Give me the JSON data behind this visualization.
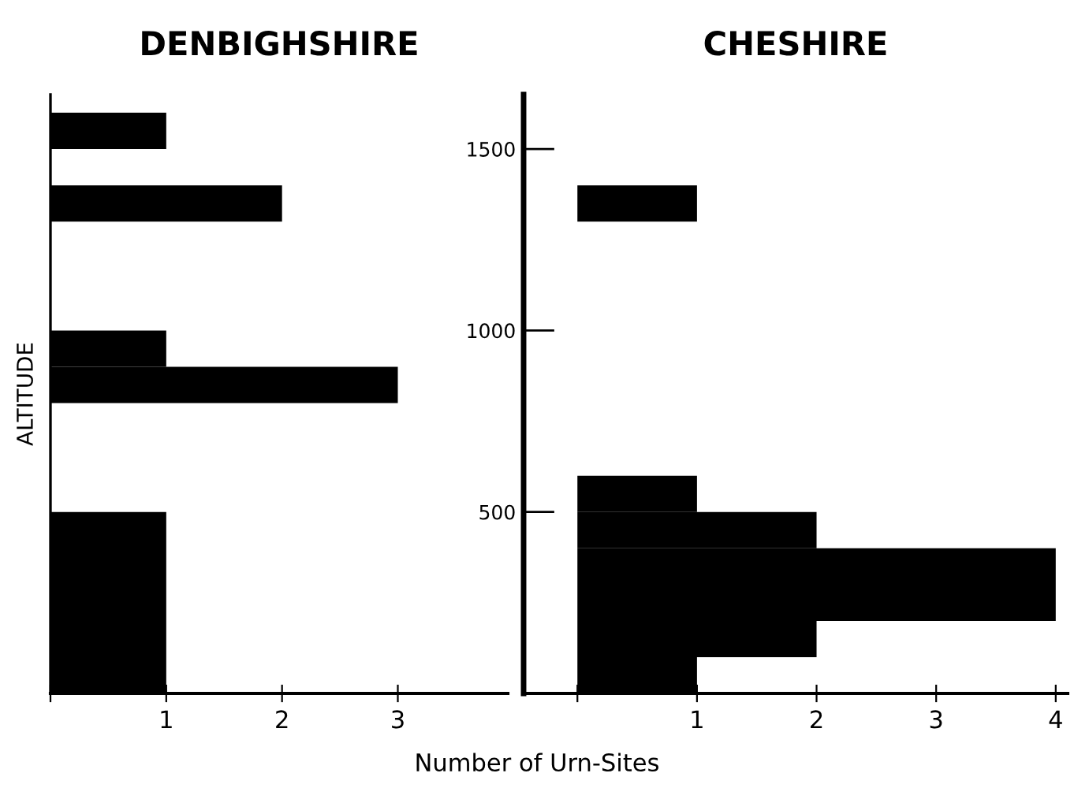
{
  "chart_data": [
    {
      "type": "histogram",
      "orientation": "horizontal",
      "title": "DENBIGHSHIRE",
      "ylabel": "ALTITUDE",
      "xlabel": "Number of Urn-Sites",
      "bins": [
        0,
        500,
        800,
        900,
        1000,
        1300,
        1400,
        1500,
        1600
      ],
      "values": [
        1,
        0,
        3,
        1,
        0,
        2,
        0,
        1
      ],
      "color": "#000000",
      "xlim": [
        0,
        3.95
      ],
      "xticks": [
        {
          "value": 0,
          "label": null
        },
        1,
        2,
        3
      ],
      "ylim": [
        0,
        1650
      ],
      "yticks": [
        500,
        1000,
        1500
      ],
      "tick_labels": "x",
      "grid": false,
      "legend": false
    },
    {
      "type": "histogram",
      "orientation": "horizontal",
      "title": "CHESHIRE",
      "bins": [
        0,
        100,
        200,
        400,
        500,
        600,
        1300,
        1400
      ],
      "values": [
        1,
        2,
        4,
        2,
        1,
        0,
        1
      ],
      "color": "#000000",
      "xlim": [
        -0.45,
        4.1
      ],
      "xticks": [
        {
          "value": 0,
          "label": null
        },
        1,
        2,
        3,
        4
      ],
      "ylim": [
        0,
        1650
      ],
      "yticks": [
        500,
        1000,
        1500
      ],
      "grid": false,
      "legend": false
    }
  ]
}
